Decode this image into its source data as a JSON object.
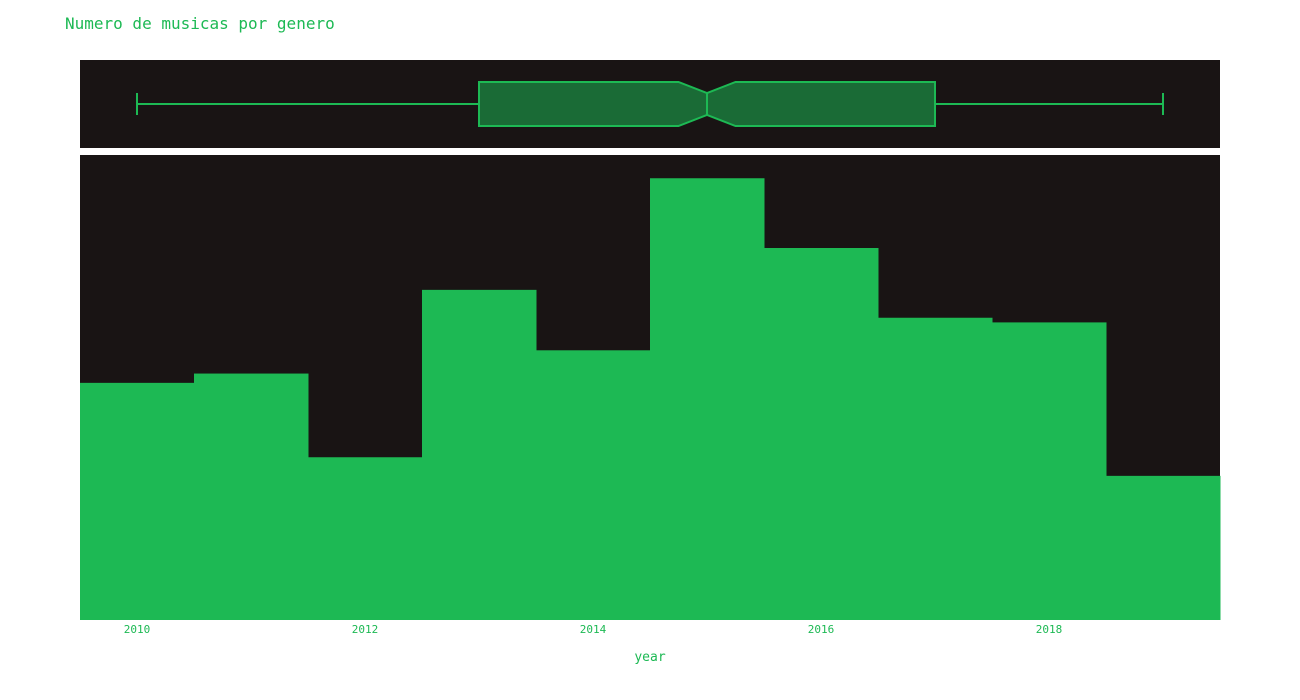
{
  "chart_data": {
    "type": "histogram",
    "title": "Numero de musicas por genero",
    "xlabel": "year",
    "ylabel": "",
    "colors": {
      "bar": "#1db954",
      "plot_background": "#191414",
      "box_fill": "#1a6b36",
      "box_line": "#1db954",
      "text": "#1db954"
    },
    "grid": false,
    "xlim": [
      2009.5,
      2019.5
    ],
    "x_ticks": [
      "2010",
      "2012",
      "2014",
      "2016",
      "2018"
    ],
    "bins": [
      {
        "start": 2009.5,
        "end": 2010.5,
        "year": 2010,
        "count": 51
      },
      {
        "start": 2010.5,
        "end": 2011.5,
        "year": 2011,
        "count": 53
      },
      {
        "start": 2011.5,
        "end": 2012.5,
        "year": 2012,
        "count": 35
      },
      {
        "start": 2012.5,
        "end": 2013.5,
        "year": 2013,
        "count": 71
      },
      {
        "start": 2013.5,
        "end": 2014.5,
        "year": 2014,
        "count": 58
      },
      {
        "start": 2014.5,
        "end": 2015.5,
        "year": 2015,
        "count": 95
      },
      {
        "start": 2015.5,
        "end": 2016.5,
        "year": 2016,
        "count": 80
      },
      {
        "start": 2016.5,
        "end": 2017.5,
        "year": 2017,
        "count": 65
      },
      {
        "start": 2017.5,
        "end": 2018.5,
        "year": 2018,
        "count": 64
      },
      {
        "start": 2018.5,
        "end": 2019.5,
        "year": 2019,
        "count": 31
      }
    ],
    "ylim": [
      0,
      100
    ],
    "marginal_box": {
      "orientation": "horizontal",
      "notched": true,
      "min": 2010,
      "q1": 2013,
      "median": 2015,
      "q3": 2017,
      "max": 2019,
      "notch_low": 2014.75,
      "notch_high": 2015.25
    }
  }
}
